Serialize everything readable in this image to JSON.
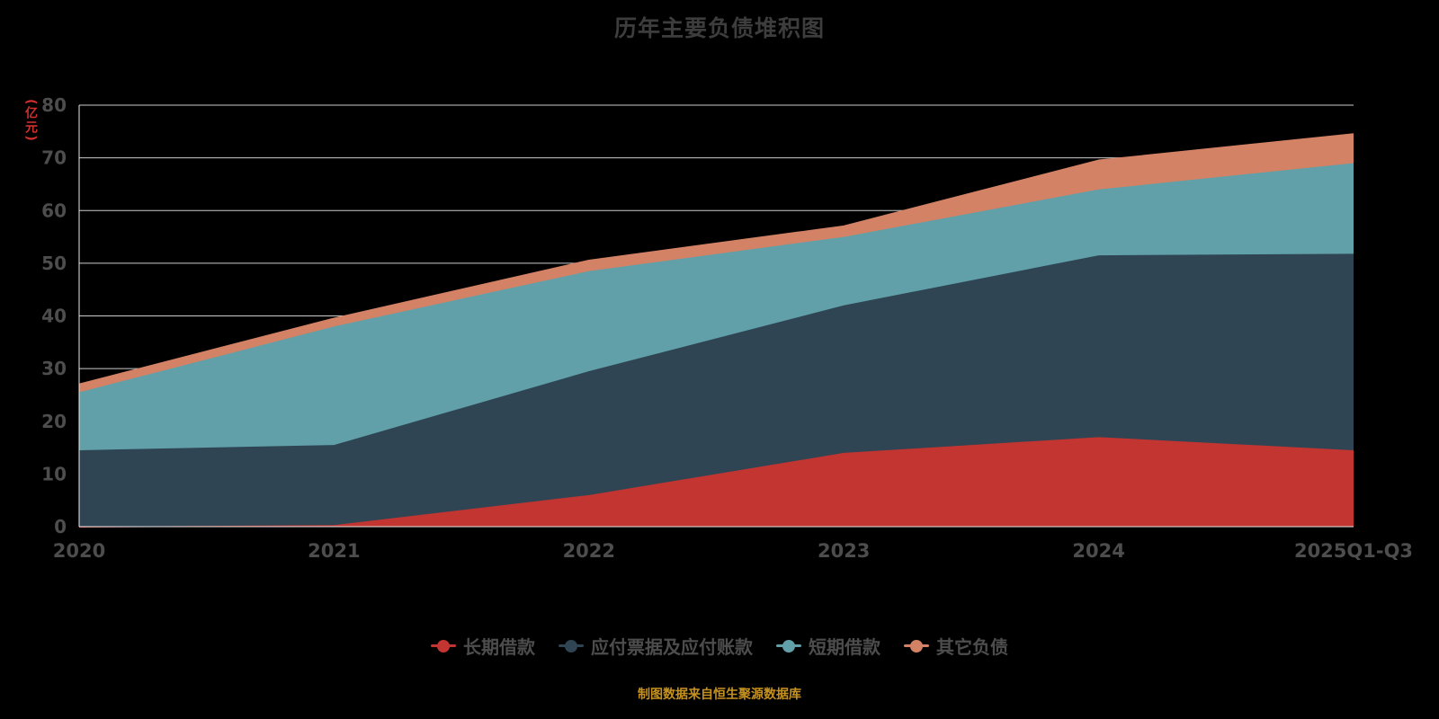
{
  "title": "历年主要负债堆积图",
  "footer": "制图数据来自恒生聚源数据库",
  "colors": {
    "background": "#000000",
    "title_text": "#3d3d3d",
    "axis_label": "#4d4d4d",
    "legend_text": "#4d4d4d",
    "grid_line": "#cccccc",
    "axis_line": "#e8e8e8",
    "y_axis_name": "#d22f2f",
    "footer_text": "#c6921f"
  },
  "chart_data": {
    "type": "area",
    "stacked": true,
    "title": "历年主要负债堆积图",
    "categories": [
      "2020",
      "2021",
      "2022",
      "2023",
      "2024",
      "2025Q1-Q3"
    ],
    "series": [
      {
        "key": "long-term-loans",
        "name": "长期借款",
        "color": "#c23531",
        "values": [
          0,
          0.3,
          6,
          14,
          17,
          14.5
        ]
      },
      {
        "key": "notes-and-accounts-payable",
        "name": "应付票据及应付账款",
        "color": "#2f4554",
        "values": [
          14.5,
          15.2,
          23.5,
          28,
          34.5,
          37.3
        ]
      },
      {
        "key": "short-term-loans",
        "name": "短期借款",
        "color": "#61a0a8",
        "values": [
          11,
          22.5,
          19,
          13,
          12.5,
          17.2
        ]
      },
      {
        "key": "other-liabilities",
        "name": "其它负债",
        "color": "#d48265",
        "values": [
          1.5,
          1.5,
          2,
          2,
          5.5,
          5.5
        ]
      }
    ],
    "stacked_totals": [
      27,
      39.5,
      50.5,
      57,
      69.5,
      74.5
    ],
    "xlabel": "",
    "ylabel": "(亿元)",
    "ylim": [
      0,
      80
    ],
    "ytick_step": 10,
    "grid": true,
    "legend_position": "bottom"
  }
}
